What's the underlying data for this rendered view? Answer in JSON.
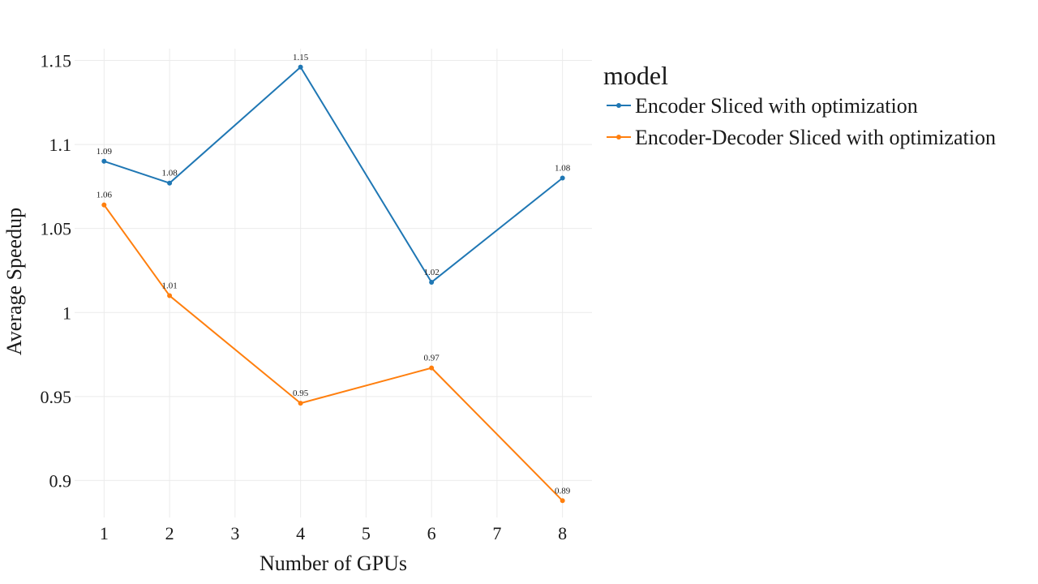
{
  "chart_data": {
    "type": "line",
    "title": "",
    "xlabel": "Number of GPUs",
    "ylabel": "Average Speedup",
    "x_ticks": [
      1,
      2,
      3,
      4,
      5,
      6,
      7,
      8
    ],
    "y_ticks": [
      0.9,
      0.95,
      1,
      1.05,
      1.1,
      1.15
    ],
    "y_tick_labels": [
      "0.9",
      "0.95",
      "1",
      "1.05",
      "1.1",
      "1.15"
    ],
    "xlim": [
      0.55,
      8.45
    ],
    "ylim": [
      0.878,
      1.157
    ],
    "grid": true,
    "legend": {
      "title": "model",
      "placement": "right"
    },
    "series": [
      {
        "name": "Encoder Sliced with optimization",
        "color": "#1f77b4",
        "x": [
          1,
          2,
          4,
          6,
          8
        ],
        "y": [
          1.09,
          1.077,
          1.146,
          1.018,
          1.08
        ],
        "labels": [
          "1.09",
          "1.08",
          "1.15",
          "1.02",
          "1.08"
        ]
      },
      {
        "name": "Encoder-Decoder Sliced with optimization",
        "color": "#ff7f0e",
        "x": [
          1,
          2,
          4,
          6,
          8
        ],
        "y": [
          1.064,
          1.01,
          0.946,
          0.967,
          0.888
        ],
        "labels": [
          "1.06",
          "1.01",
          "0.95",
          "0.97",
          "0.89"
        ]
      }
    ]
  }
}
